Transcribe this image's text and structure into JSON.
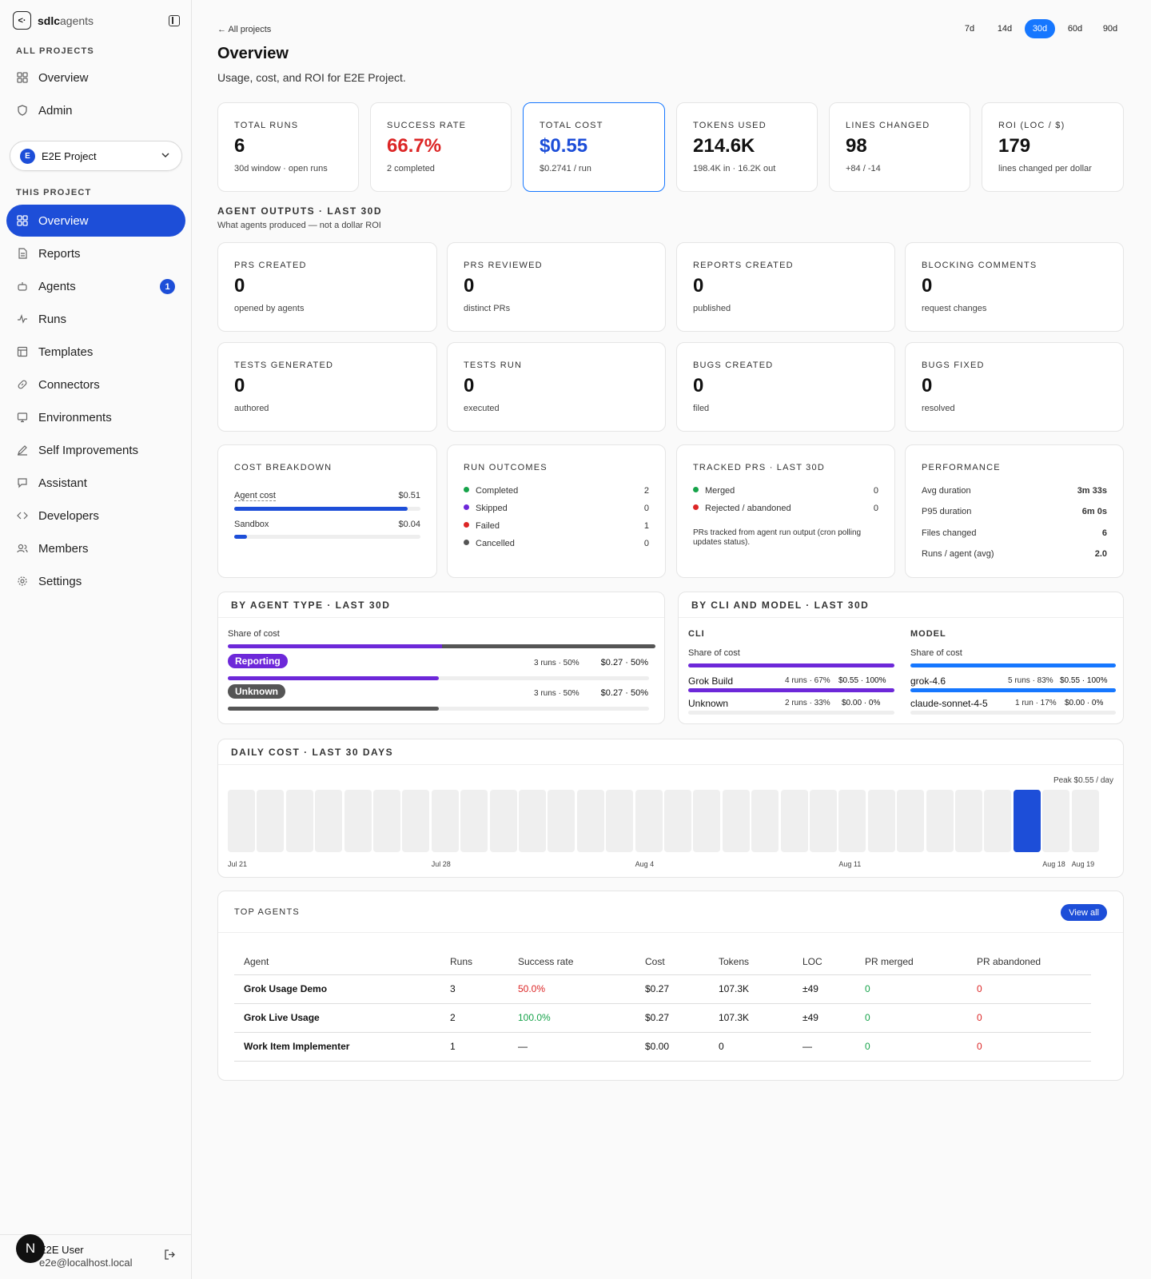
{
  "brand": {
    "bold": "sdlc",
    "rest": "agents",
    "logo": "<·"
  },
  "sidebar": {
    "all_projects_label": "ALL PROJECTS",
    "top_items": [
      {
        "label": "Overview",
        "icon": "grid-icon"
      },
      {
        "label": "Admin",
        "icon": "shield-icon"
      }
    ],
    "project": {
      "avatar": "E",
      "name": "E2E Project"
    },
    "this_project_label": "THIS PROJECT",
    "items": [
      {
        "label": "Overview",
        "icon": "grid-icon"
      },
      {
        "label": "Reports",
        "icon": "file-icon"
      },
      {
        "label": "Agents",
        "icon": "bot-icon",
        "badge": "1"
      },
      {
        "label": "Runs",
        "icon": "activity-icon"
      },
      {
        "label": "Templates",
        "icon": "table-icon"
      },
      {
        "label": "Connectors",
        "icon": "link-icon"
      },
      {
        "label": "Environments",
        "icon": "monitor-icon"
      },
      {
        "label": "Self Improvements",
        "icon": "pen-icon"
      },
      {
        "label": "Assistant",
        "icon": "chat-icon"
      },
      {
        "label": "Developers",
        "icon": "code-icon"
      },
      {
        "label": "Members",
        "icon": "users-icon"
      },
      {
        "label": "Settings",
        "icon": "gear-icon"
      }
    ],
    "user": {
      "avatar": "N",
      "name": "E2E User",
      "email": "e2e@localhost.local"
    }
  },
  "header": {
    "back": "← All projects",
    "title": "Overview",
    "subtitle": "Usage, cost, and ROI for E2E Project.",
    "ranges": [
      "7d",
      "14d",
      "30d",
      "60d",
      "90d"
    ],
    "active_range": "30d"
  },
  "stats": [
    {
      "label": "TOTAL RUNS",
      "value": "6",
      "sub": "30d window · open runs"
    },
    {
      "label": "SUCCESS RATE",
      "value": "66.7%",
      "sub": "2 completed"
    },
    {
      "label": "TOTAL COST",
      "value": "$0.55",
      "sub": "$0.2741 / run"
    },
    {
      "label": "TOKENS USED",
      "value": "214.6K",
      "sub": "198.4K in · 16.2K out"
    },
    {
      "label": "LINES CHANGED",
      "value": "98",
      "sub": "+84 / -14"
    },
    {
      "label": "ROI (LOC / $)",
      "value": "179",
      "sub": "lines changed per dollar"
    }
  ],
  "outputs": {
    "title": "AGENT OUTPUTS · LAST 30D",
    "subtitle": "What agents produced — not a dollar ROI",
    "cards": [
      {
        "label": "PRS CREATED",
        "value": "0",
        "sub": "opened by agents"
      },
      {
        "label": "PRS REVIEWED",
        "value": "0",
        "sub": "distinct PRs"
      },
      {
        "label": "REPORTS CREATED",
        "value": "0",
        "sub": "published"
      },
      {
        "label": "BLOCKING COMMENTS",
        "value": "0",
        "sub": "request changes"
      },
      {
        "label": "TESTS GENERATED",
        "value": "0",
        "sub": "authored"
      },
      {
        "label": "TESTS RUN",
        "value": "0",
        "sub": "executed"
      },
      {
        "label": "BUGS CREATED",
        "value": "0",
        "sub": "filed"
      },
      {
        "label": "BUGS FIXED",
        "value": "0",
        "sub": "resolved"
      }
    ]
  },
  "cost_breakdown": {
    "title": "COST BREAKDOWN",
    "rows": [
      {
        "label": "Agent cost",
        "value": "$0.51",
        "fraction": 0.93
      },
      {
        "label": "Sandbox",
        "value": "$0.04",
        "fraction": 0.07
      }
    ]
  },
  "run_outcomes": {
    "title": "RUN OUTCOMES",
    "rows": [
      {
        "label": "Completed",
        "value": "2",
        "color": "#16a34a"
      },
      {
        "label": "Skipped",
        "value": "0",
        "color": "#6d28d9"
      },
      {
        "label": "Failed",
        "value": "1",
        "color": "#dc2626"
      },
      {
        "label": "Cancelled",
        "value": "0",
        "color": "#555555"
      }
    ]
  },
  "tracked_prs": {
    "title": "TRACKED PRS · LAST 30D",
    "rows": [
      {
        "label": "Merged",
        "value": "0",
        "color": "#16a34a"
      },
      {
        "label": "Rejected / abandoned",
        "value": "0",
        "color": "#dc2626"
      }
    ],
    "note": "PRs tracked from agent run output (cron polling updates status)."
  },
  "performance": {
    "title": "PERFORMANCE",
    "rows": [
      {
        "label": "Avg duration",
        "value": "3m 33s"
      },
      {
        "label": "P95 duration",
        "value": "6m 0s"
      },
      {
        "label": "Files changed",
        "value": "6"
      },
      {
        "label": "Runs / agent (avg)",
        "value": "2.0"
      }
    ]
  },
  "by_agent_type": {
    "title": "BY AGENT TYPE · LAST 30D",
    "share_label": "Share of cost",
    "rows": [
      {
        "label": "Reporting",
        "runs": "3 runs · 50%",
        "cost": "$0.27 · 50%",
        "color": "#6d28d9",
        "share": 0.5
      },
      {
        "label": "Unknown",
        "runs": "3 runs · 50%",
        "cost": "$0.27 · 50%",
        "color": "#555555",
        "share": 0.5
      }
    ]
  },
  "by_cli_model": {
    "title": "BY CLI AND MODEL · LAST 30D",
    "cli": {
      "label": "CLI",
      "share_label": "Share of cost",
      "rows": [
        {
          "label": "Grok Build",
          "runs": "4 runs · 67%",
          "cost": "$0.55 · 100%",
          "share": 1.0
        },
        {
          "label": "Unknown",
          "runs": "2 runs · 33%",
          "cost": "$0.00 · 0%",
          "share": 0.0
        }
      ]
    },
    "model": {
      "label": "MODEL",
      "share_label": "Share of cost",
      "rows": [
        {
          "label": "grok-4.6",
          "runs": "5 runs · 83%",
          "cost": "$0.55 · 100%",
          "share": 1.0
        },
        {
          "label": "claude-sonnet-4-5",
          "runs": "1 run · 17%",
          "cost": "$0.00 · 0%",
          "share": 0.0
        }
      ]
    }
  },
  "chart_data": {
    "type": "bar",
    "title": "DAILY COST · LAST 30 DAYS",
    "peak_label": "Peak $0.55 / day",
    "tick_labels": [
      "Jul 21",
      "Jul 28",
      "Aug 4",
      "Aug 11",
      "Aug 18",
      "Aug 19"
    ],
    "values": [
      0,
      0,
      0,
      0,
      0,
      0,
      0,
      0,
      0,
      0,
      0,
      0,
      0,
      0,
      0,
      0,
      0,
      0,
      0,
      0,
      0,
      0,
      0,
      0,
      0,
      0,
      0,
      0.55,
      0,
      0
    ],
    "ylim": [
      0,
      0.55
    ]
  },
  "top_agents": {
    "title": "TOP AGENTS",
    "view_all": "View all",
    "columns": [
      "Agent",
      "Runs",
      "Success rate",
      "Cost",
      "Tokens",
      "LOC",
      "PR merged",
      "PR abandoned"
    ],
    "rows": [
      {
        "agent": "Grok Usage Demo",
        "runs": "3",
        "success": "50.0%",
        "success_color": "#dc2626",
        "cost": "$0.27",
        "tokens": "107.3K",
        "loc": "±49",
        "merged": "0",
        "abandoned": "0"
      },
      {
        "agent": "Grok Live Usage",
        "runs": "2",
        "success": "100.0%",
        "success_color": "#16a34a",
        "cost": "$0.27",
        "tokens": "107.3K",
        "loc": "±49",
        "merged": "0",
        "abandoned": "0"
      },
      {
        "agent": "Work Item Implementer",
        "runs": "1",
        "success": "—",
        "success_color": "#111111",
        "cost": "$0.00",
        "tokens": "0",
        "loc": "—",
        "merged": "0",
        "abandoned": "0"
      }
    ]
  }
}
